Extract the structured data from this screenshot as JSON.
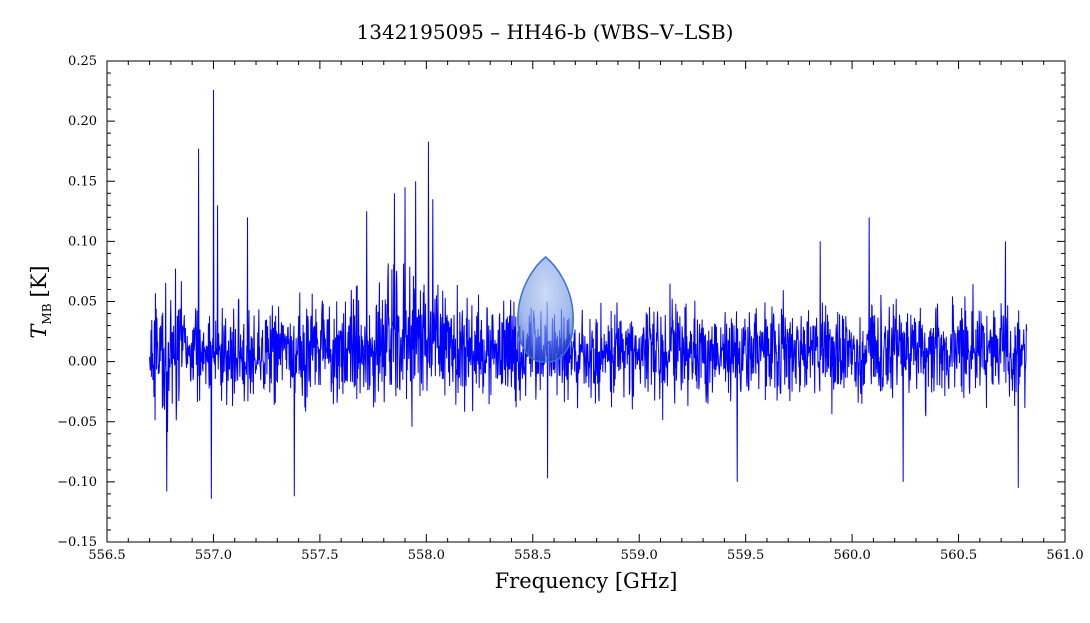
{
  "chart_data": {
    "type": "line",
    "title": "1342195095 – HH46-b (WBS–V–LSB)",
    "xlabel": "Frequency [GHz]",
    "ylabel_main": "T",
    "ylabel_sub": "MB",
    "ylabel_unit": "[K]",
    "xlim": [
      556.5,
      561.0
    ],
    "ylim": [
      -0.15,
      0.25
    ],
    "x_ticks": [
      "556.5",
      "557.0",
      "557.5",
      "558.0",
      "558.5",
      "559.0",
      "559.5",
      "560.0",
      "560.5",
      "561.0"
    ],
    "y_ticks": [
      "−0.15",
      "−0.10",
      "−0.05",
      "0.00",
      "0.05",
      "0.10",
      "0.15",
      "0.20",
      "0.25"
    ],
    "grid": false,
    "series": [
      {
        "color": "#0000ff",
        "x_range": [
          556.7,
          560.82
        ],
        "spikes": [
          [
            556.93,
            0.177
          ],
          [
            557.0,
            0.226
          ],
          [
            557.02,
            0.13
          ],
          [
            557.16,
            0.12
          ],
          [
            557.72,
            0.125
          ],
          [
            557.85,
            0.14
          ],
          [
            557.9,
            0.145
          ],
          [
            557.95,
            0.15
          ],
          [
            558.01,
            0.183
          ],
          [
            558.03,
            0.135
          ],
          [
            559.85,
            0.1
          ],
          [
            560.08,
            0.12
          ],
          [
            560.72,
            0.1
          ],
          [
            556.99,
            -0.114
          ],
          [
            557.38,
            -0.112
          ],
          [
            556.78,
            -0.108
          ],
          [
            558.57,
            -0.097
          ],
          [
            559.46,
            -0.1
          ],
          [
            560.24,
            -0.1
          ],
          [
            560.78,
            -0.105
          ]
        ]
      }
    ],
    "highlight": {
      "color": "#3b6fd8",
      "center": 558.56,
      "half_width": 0.13,
      "peak": 0.087,
      "base": 0.0
    }
  }
}
